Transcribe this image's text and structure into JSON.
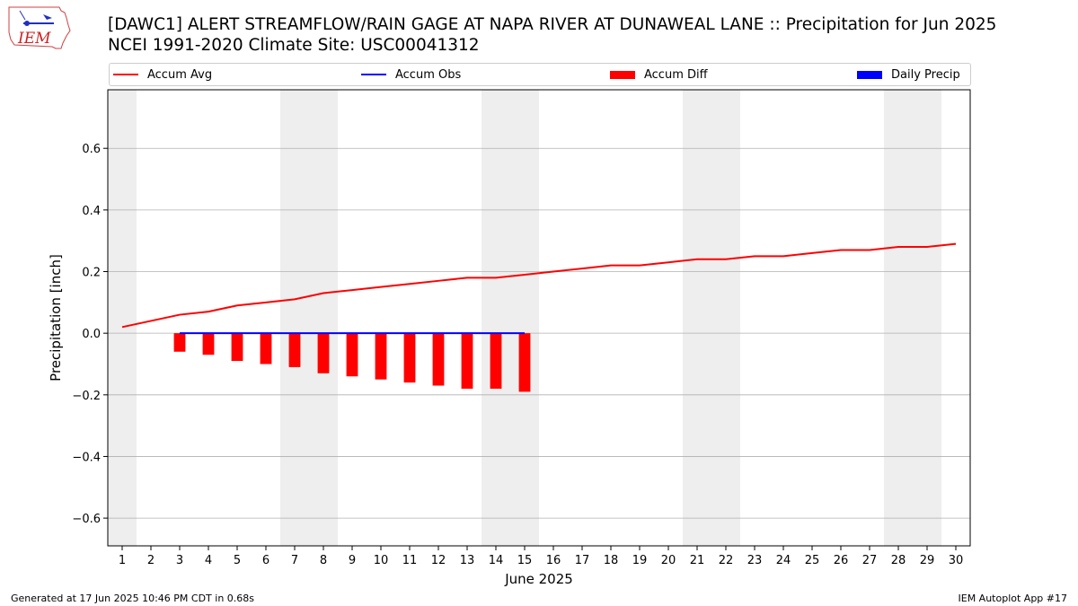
{
  "header": {
    "title": "[DAWC1] ALERT STREAMFLOW/RAIN GAGE  AT NAPA RIVER AT DUNAWEAL LANE :: Precipitation for Jun 2025",
    "subtitle": "NCEI 1991-2020 Climate Site: USC00041312",
    "logo_text": "IEM"
  },
  "legend": {
    "accum_avg": "Accum Avg",
    "accum_obs": "Accum Obs",
    "accum_diff": "Accum Diff",
    "daily_precip": "Daily Precip"
  },
  "footer": {
    "generated": "Generated at 17 Jun 2025 10:46 PM CDT in 0.68s",
    "app": "IEM Autoplot App #17"
  },
  "colors": {
    "accum_avg": "#ff0000",
    "accum_obs": "#0000ff",
    "accum_diff": "#ff0000",
    "daily_precip": "#0000ff",
    "weekend_shade": "#eeeeee",
    "grid": "#b0b0b0"
  },
  "chart_data": {
    "type": "line",
    "title": "[DAWC1] ALERT STREAMFLOW/RAIN GAGE  AT NAPA RIVER AT DUNAWEAL LANE :: Precipitation for Jun 2025",
    "xlabel": "June 2025",
    "ylabel": "Precipitation [inch]",
    "xlim": [
      0.5,
      30.5
    ],
    "ylim": [
      -0.69,
      0.79
    ],
    "yticks": [
      -0.6,
      -0.4,
      -0.2,
      0.0,
      0.2,
      0.4,
      0.6
    ],
    "ytick_labels": [
      "−0.6",
      "−0.4",
      "−0.2",
      "0.0",
      "0.2",
      "0.4",
      "0.6"
    ],
    "days": [
      1,
      2,
      3,
      4,
      5,
      6,
      7,
      8,
      9,
      10,
      11,
      12,
      13,
      14,
      15,
      16,
      17,
      18,
      19,
      20,
      21,
      22,
      23,
      24,
      25,
      26,
      27,
      28,
      29,
      30
    ],
    "weekend_spans": [
      [
        0.5,
        1.5
      ],
      [
        6.5,
        8.5
      ],
      [
        13.5,
        15.5
      ],
      [
        20.5,
        22.5
      ],
      [
        27.5,
        29.5
      ]
    ],
    "grid": "y",
    "legend_position": "top",
    "series": [
      {
        "name": "Accum Avg",
        "kind": "line",
        "x": [
          1,
          2,
          3,
          4,
          5,
          6,
          7,
          8,
          9,
          10,
          11,
          12,
          13,
          14,
          15,
          16,
          17,
          18,
          19,
          20,
          21,
          22,
          23,
          24,
          25,
          26,
          27,
          28,
          29,
          30
        ],
        "values": [
          0.02,
          0.04,
          0.06,
          0.07,
          0.09,
          0.1,
          0.11,
          0.13,
          0.14,
          0.15,
          0.16,
          0.17,
          0.18,
          0.18,
          0.19,
          0.2,
          0.21,
          0.22,
          0.22,
          0.23,
          0.24,
          0.24,
          0.25,
          0.25,
          0.26,
          0.27,
          0.27,
          0.28,
          0.28,
          0.29
        ]
      },
      {
        "name": "Accum Obs",
        "kind": "line",
        "x": [
          3,
          4,
          5,
          6,
          7,
          8,
          9,
          10,
          11,
          12,
          13,
          14,
          15
        ],
        "values": [
          0,
          0,
          0,
          0,
          0,
          0,
          0,
          0,
          0,
          0,
          0,
          0,
          0
        ]
      },
      {
        "name": "Accum Diff",
        "kind": "bar",
        "x": [
          3,
          4,
          5,
          6,
          7,
          8,
          9,
          10,
          11,
          12,
          13,
          14,
          15
        ],
        "values": [
          -0.06,
          -0.07,
          -0.09,
          -0.1,
          -0.11,
          -0.13,
          -0.14,
          -0.15,
          -0.16,
          -0.17,
          -0.18,
          -0.18,
          -0.19
        ]
      },
      {
        "name": "Daily Precip",
        "kind": "bar",
        "x": [
          3,
          4,
          5,
          6,
          7,
          8,
          9,
          10,
          11,
          12,
          13,
          14,
          15
        ],
        "values": [
          0,
          0,
          0,
          0,
          0,
          0,
          0,
          0,
          0,
          0,
          0,
          0,
          0
        ]
      }
    ]
  }
}
